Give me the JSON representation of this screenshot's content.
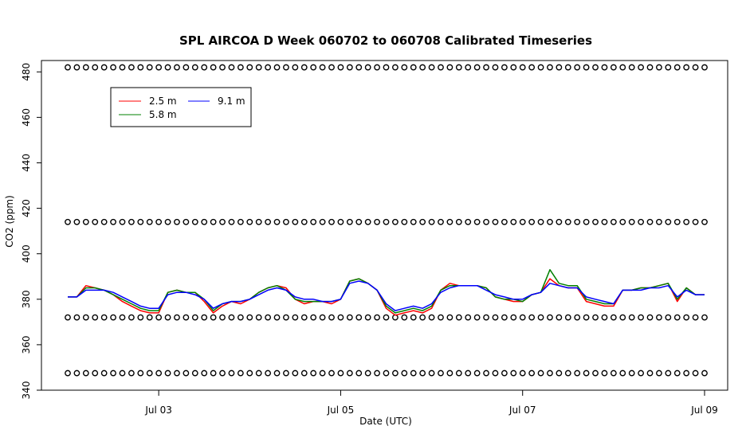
{
  "chart_data": {
    "type": "line",
    "title": "SPL AIRCOA D  Week 060702 to 060708  Calibrated Timeseries",
    "xlabel": "Date (UTC)",
    "ylabel": "CO2 (ppm)",
    "xlim": [
      2.0,
      9.0
    ],
    "ylim": [
      340,
      485
    ],
    "x_ticks": [
      {
        "value": 3,
        "label": "Jul 03"
      },
      {
        "value": 5,
        "label": "Jul 05"
      },
      {
        "value": 7,
        "label": "Jul 07"
      },
      {
        "value": 9,
        "label": "Jul 09"
      }
    ],
    "y_ticks": [
      {
        "value": 340,
        "label": "340"
      },
      {
        "value": 360,
        "label": "360"
      },
      {
        "value": 380,
        "label": "380"
      },
      {
        "value": 400,
        "label": "400"
      },
      {
        "value": 420,
        "label": "420"
      },
      {
        "value": 440,
        "label": "440"
      },
      {
        "value": 460,
        "label": "460"
      },
      {
        "value": 480,
        "label": "480"
      }
    ],
    "legend": {
      "placement": "top-left",
      "entries": [
        {
          "label": "2.5 m",
          "color": "#ff0000"
        },
        {
          "label": "9.1 m",
          "color": "#0000ff"
        },
        {
          "label": "5.8 m",
          "color": "#008000"
        }
      ]
    },
    "series": [
      {
        "name": "2.5 m",
        "color": "#ff0000",
        "x": [
          2.0,
          2.1,
          2.2,
          2.3,
          2.4,
          2.5,
          2.6,
          2.7,
          2.8,
          2.9,
          3.0,
          3.1,
          3.2,
          3.3,
          3.4,
          3.5,
          3.6,
          3.7,
          3.8,
          3.9,
          4.0,
          4.1,
          4.2,
          4.3,
          4.4,
          4.5,
          4.6,
          4.7,
          4.8,
          4.9,
          5.0,
          5.1,
          5.2,
          5.3,
          5.4,
          5.5,
          5.6,
          5.7,
          5.8,
          5.9,
          6.0,
          6.1,
          6.2,
          6.3,
          6.4,
          6.5,
          6.6,
          6.7,
          6.8,
          6.9,
          7.0,
          7.1,
          7.2,
          7.3,
          7.4,
          7.5,
          7.6,
          7.7,
          7.8,
          7.9,
          8.0,
          8.1,
          8.2,
          8.3,
          8.4,
          8.5,
          8.6,
          8.7,
          8.8,
          8.9,
          9.0
        ],
        "values": [
          381,
          381,
          386,
          385,
          384,
          382,
          379,
          377,
          375,
          374,
          374,
          383,
          384,
          383,
          383,
          379,
          374,
          377,
          379,
          378,
          380,
          383,
          385,
          386,
          385,
          380,
          378,
          379,
          379,
          378,
          380,
          388,
          389,
          387,
          384,
          376,
          373,
          374,
          375,
          374,
          376,
          384,
          387,
          386,
          386,
          386,
          385,
          381,
          380,
          379,
          379,
          382,
          383,
          389,
          386,
          385,
          385,
          379,
          378,
          377,
          377,
          384,
          384,
          385,
          385,
          386,
          387,
          379,
          385,
          382,
          382
        ]
      },
      {
        "name": "5.8 m",
        "color": "#008000",
        "x": [
          2.0,
          2.1,
          2.2,
          2.3,
          2.4,
          2.5,
          2.6,
          2.7,
          2.8,
          2.9,
          3.0,
          3.1,
          3.2,
          3.3,
          3.4,
          3.5,
          3.6,
          3.7,
          3.8,
          3.9,
          4.0,
          4.1,
          4.2,
          4.3,
          4.4,
          4.5,
          4.6,
          4.7,
          4.8,
          4.9,
          5.0,
          5.1,
          5.2,
          5.3,
          5.4,
          5.5,
          5.6,
          5.7,
          5.8,
          5.9,
          6.0,
          6.1,
          6.2,
          6.3,
          6.4,
          6.5,
          6.6,
          6.7,
          6.8,
          6.9,
          7.0,
          7.1,
          7.2,
          7.3,
          7.4,
          7.5,
          7.6,
          7.7,
          7.8,
          7.9,
          8.0,
          8.1,
          8.2,
          8.3,
          8.4,
          8.5,
          8.6,
          8.7,
          8.8,
          8.9,
          9.0
        ],
        "values": [
          381,
          381,
          385,
          385,
          384,
          382,
          380,
          378,
          376,
          375,
          375,
          383,
          384,
          383,
          383,
          380,
          375,
          378,
          379,
          379,
          380,
          383,
          385,
          386,
          384,
          380,
          379,
          379,
          379,
          379,
          380,
          388,
          389,
          387,
          384,
          377,
          374,
          375,
          376,
          375,
          377,
          384,
          386,
          386,
          386,
          386,
          385,
          381,
          380,
          380,
          379,
          382,
          383,
          393,
          387,
          386,
          386,
          380,
          379,
          378,
          378,
          384,
          384,
          385,
          385,
          386,
          387,
          380,
          385,
          382,
          382
        ]
      },
      {
        "name": "9.1 m",
        "color": "#0000ff",
        "x": [
          2.0,
          2.1,
          2.2,
          2.3,
          2.4,
          2.5,
          2.6,
          2.7,
          2.8,
          2.9,
          3.0,
          3.1,
          3.2,
          3.3,
          3.4,
          3.5,
          3.6,
          3.7,
          3.8,
          3.9,
          4.0,
          4.1,
          4.2,
          4.3,
          4.4,
          4.5,
          4.6,
          4.7,
          4.8,
          4.9,
          5.0,
          5.1,
          5.2,
          5.3,
          5.4,
          5.5,
          5.6,
          5.7,
          5.8,
          5.9,
          6.0,
          6.1,
          6.2,
          6.3,
          6.4,
          6.5,
          6.6,
          6.7,
          6.8,
          6.9,
          7.0,
          7.1,
          7.2,
          7.3,
          7.4,
          7.5,
          7.6,
          7.7,
          7.8,
          7.9,
          8.0,
          8.1,
          8.2,
          8.3,
          8.4,
          8.5,
          8.6,
          8.7,
          8.8,
          8.9,
          9.0
        ],
        "values": [
          381,
          381,
          384,
          384,
          384,
          383,
          381,
          379,
          377,
          376,
          376,
          382,
          383,
          383,
          382,
          380,
          376,
          378,
          379,
          379,
          380,
          382,
          384,
          385,
          384,
          381,
          380,
          380,
          379,
          379,
          380,
          387,
          388,
          387,
          384,
          378,
          375,
          376,
          377,
          376,
          378,
          383,
          385,
          386,
          386,
          386,
          384,
          382,
          381,
          380,
          380,
          382,
          383,
          387,
          386,
          385,
          385,
          381,
          380,
          379,
          378,
          384,
          384,
          384,
          385,
          385,
          386,
          381,
          384,
          382,
          382
        ]
      },
      {
        "name": "calibration 482",
        "color": "#000000",
        "x": [
          2.0,
          2.1,
          2.2,
          2.3,
          2.4,
          2.5,
          2.6,
          2.7,
          2.8,
          2.9,
          3.0,
          3.1,
          3.2,
          3.3,
          3.4,
          3.5,
          3.6,
          3.7,
          3.8,
          3.9,
          4.0,
          4.1,
          4.2,
          4.3,
          4.4,
          4.5,
          4.6,
          4.7,
          4.8,
          4.9,
          5.0,
          5.1,
          5.2,
          5.3,
          5.4,
          5.5,
          5.6,
          5.7,
          5.8,
          5.9,
          6.0,
          6.1,
          6.2,
          6.3,
          6.4,
          6.5,
          6.6,
          6.7,
          6.8,
          6.9,
          7.0,
          7.1,
          7.2,
          7.3,
          7.4,
          7.5,
          7.6,
          7.7,
          7.8,
          7.9,
          8.0,
          8.1,
          8.2,
          8.3,
          8.4,
          8.5,
          8.6,
          8.7,
          8.8,
          8.9,
          9.0
        ],
        "values": [
          482,
          482,
          482,
          482,
          482,
          482,
          482,
          482,
          482,
          482,
          482,
          482,
          482,
          482,
          482,
          482,
          482,
          482,
          482,
          482,
          482,
          482,
          482,
          482,
          482,
          482,
          482,
          482,
          482,
          482,
          482,
          482,
          482,
          482,
          482,
          482,
          482,
          482,
          482,
          482,
          482,
          482,
          482,
          482,
          482,
          482,
          482,
          482,
          482,
          482,
          482,
          482,
          482,
          482,
          482,
          482,
          482,
          482,
          482,
          482,
          482,
          482,
          482,
          482,
          482,
          482,
          482,
          482,
          482,
          482,
          482
        ]
      },
      {
        "name": "calibration 414",
        "color": "#000000",
        "x": [
          2.0,
          2.1,
          2.2,
          2.3,
          2.4,
          2.5,
          2.6,
          2.7,
          2.8,
          2.9,
          3.0,
          3.1,
          3.2,
          3.3,
          3.4,
          3.5,
          3.6,
          3.7,
          3.8,
          3.9,
          4.0,
          4.1,
          4.2,
          4.3,
          4.4,
          4.5,
          4.6,
          4.7,
          4.8,
          4.9,
          5.0,
          5.1,
          5.2,
          5.3,
          5.4,
          5.5,
          5.6,
          5.7,
          5.8,
          5.9,
          6.0,
          6.1,
          6.2,
          6.3,
          6.4,
          6.5,
          6.6,
          6.7,
          6.8,
          6.9,
          7.0,
          7.1,
          7.2,
          7.3,
          7.4,
          7.5,
          7.6,
          7.7,
          7.8,
          7.9,
          8.0,
          8.1,
          8.2,
          8.3,
          8.4,
          8.5,
          8.6,
          8.7,
          8.8,
          8.9,
          9.0
        ],
        "values": [
          414,
          414,
          414,
          414,
          414,
          414,
          414,
          414,
          414,
          414,
          414,
          414,
          414,
          414,
          414,
          414,
          414,
          414,
          414,
          414,
          414,
          414,
          414,
          414,
          414,
          414,
          414,
          414,
          414,
          414,
          414,
          414,
          414,
          414,
          414,
          414,
          414,
          414,
          414,
          414,
          414,
          414,
          414,
          414,
          414,
          414,
          414,
          414,
          414,
          414,
          414,
          414,
          414,
          414,
          414,
          414,
          414,
          414,
          414,
          414,
          414,
          414,
          414,
          414,
          414,
          414,
          414,
          414,
          414,
          414,
          414
        ]
      },
      {
        "name": "calibration 372",
        "color": "#000000",
        "x": [
          2.0,
          2.1,
          2.2,
          2.3,
          2.4,
          2.5,
          2.6,
          2.7,
          2.8,
          2.9,
          3.0,
          3.1,
          3.2,
          3.3,
          3.4,
          3.5,
          3.6,
          3.7,
          3.8,
          3.9,
          4.0,
          4.1,
          4.2,
          4.3,
          4.4,
          4.5,
          4.6,
          4.7,
          4.8,
          4.9,
          5.0,
          5.1,
          5.2,
          5.3,
          5.4,
          5.5,
          5.6,
          5.7,
          5.8,
          5.9,
          6.0,
          6.1,
          6.2,
          6.3,
          6.4,
          6.5,
          6.6,
          6.7,
          6.8,
          6.9,
          7.0,
          7.1,
          7.2,
          7.3,
          7.4,
          7.5,
          7.6,
          7.7,
          7.8,
          7.9,
          8.0,
          8.1,
          8.2,
          8.3,
          8.4,
          8.5,
          8.6,
          8.7,
          8.8,
          8.9,
          9.0
        ],
        "values": [
          372,
          372,
          372,
          372,
          372,
          372,
          372,
          372,
          372,
          372,
          372,
          372,
          372,
          372,
          372,
          372,
          372,
          372,
          372,
          372,
          372,
          372,
          372,
          372,
          372,
          372,
          372,
          372,
          372,
          372,
          372,
          372,
          372,
          372,
          372,
          372,
          372,
          372,
          372,
          372,
          372,
          372,
          372,
          372,
          372,
          372,
          372,
          372,
          372,
          372,
          372,
          372,
          372,
          372,
          372,
          372,
          372,
          372,
          372,
          372,
          372,
          372,
          372,
          372,
          372,
          372,
          372,
          372,
          372,
          372,
          372
        ]
      },
      {
        "name": "calibration 347.5",
        "color": "#000000",
        "x": [
          2.0,
          2.1,
          2.2,
          2.3,
          2.4,
          2.5,
          2.6,
          2.7,
          2.8,
          2.9,
          3.0,
          3.1,
          3.2,
          3.3,
          3.4,
          3.5,
          3.6,
          3.7,
          3.8,
          3.9,
          4.0,
          4.1,
          4.2,
          4.3,
          4.4,
          4.5,
          4.6,
          4.7,
          4.8,
          4.9,
          5.0,
          5.1,
          5.2,
          5.3,
          5.4,
          5.5,
          5.6,
          5.7,
          5.8,
          5.9,
          6.0,
          6.1,
          6.2,
          6.3,
          6.4,
          6.5,
          6.6,
          6.7,
          6.8,
          6.9,
          7.0,
          7.1,
          7.2,
          7.3,
          7.4,
          7.5,
          7.6,
          7.7,
          7.8,
          7.9,
          8.0,
          8.1,
          8.2,
          8.3,
          8.4,
          8.5,
          8.6,
          8.7,
          8.8,
          8.9,
          9.0
        ],
        "values": [
          347.5,
          347.5,
          347.5,
          347.5,
          347.5,
          347.5,
          347.5,
          347.5,
          347.5,
          347.5,
          347.5,
          347.5,
          347.5,
          347.5,
          347.5,
          347.5,
          347.5,
          347.5,
          347.5,
          347.5,
          347.5,
          347.5,
          347.5,
          347.5,
          347.5,
          347.5,
          347.5,
          347.5,
          347.5,
          347.5,
          347.5,
          347.5,
          347.5,
          347.5,
          347.5,
          347.5,
          347.5,
          347.5,
          347.5,
          347.5,
          347.5,
          347.5,
          347.5,
          347.5,
          347.5,
          347.5,
          347.5,
          347.5,
          347.5,
          347.5,
          347.5,
          347.5,
          347.5,
          347.5,
          347.5,
          347.5,
          347.5,
          347.5,
          347.5,
          347.5,
          347.5,
          347.5,
          347.5,
          347.5,
          347.5,
          347.5,
          347.5,
          347.5,
          347.5,
          347.5,
          347.5
        ]
      }
    ]
  }
}
